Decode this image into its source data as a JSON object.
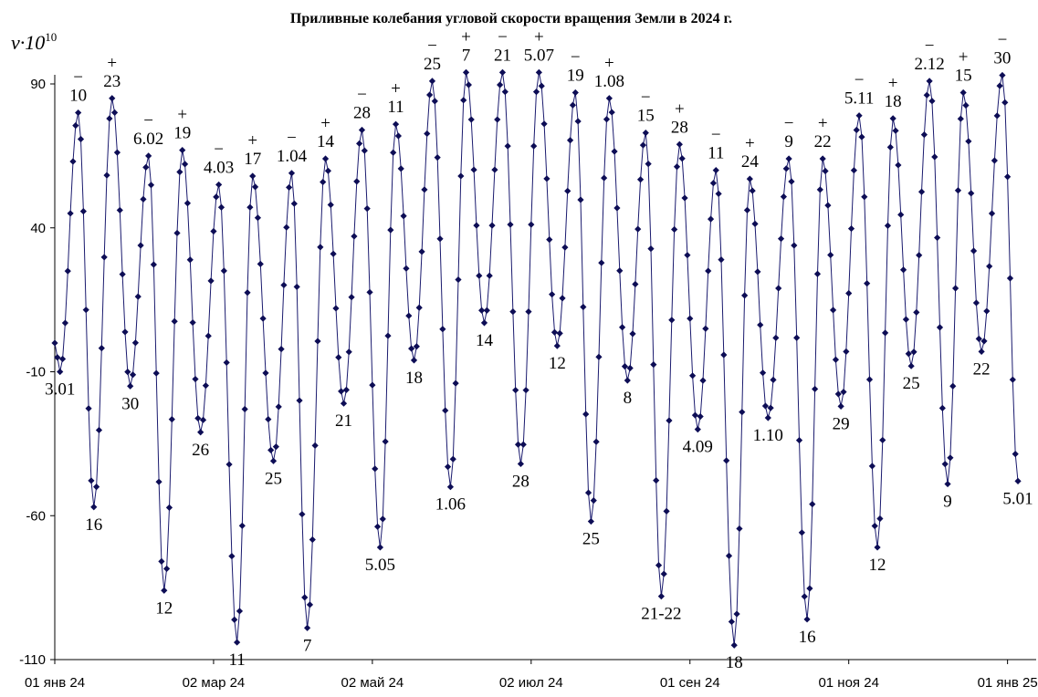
{
  "chart_data": {
    "type": "line",
    "title": "Приливные колебания угловой скорости вращения Земли в 2024 г.",
    "ylabel_base": "ν·10",
    "ylabel_exp": "10",
    "ylim": [
      -110,
      100
    ],
    "yticks": [
      90,
      40,
      -10,
      -60,
      -110
    ],
    "ytick_labels": [
      "90",
      "40",
      "-10",
      "-60",
      "-110"
    ],
    "xlim": [
      "2024-01-01",
      "2025-01-12"
    ],
    "xticks": [
      "2024-01-01",
      "2024-03-02",
      "2024-05-02",
      "2024-07-02",
      "2024-09-01",
      "2024-11-01",
      "2025-01-01"
    ],
    "xtick_labels": [
      "01 янв 24",
      "02 мар 24",
      "02 май 24",
      "02 июл 24",
      "01 сен 24",
      "01 ноя 24",
      "01 янв 25"
    ],
    "grid": false,
    "marker": "diamond",
    "line_color": "#1a1a6e",
    "marker_color": "#0d0d55",
    "extrema": [
      {
        "x": "2024-01-01",
        "y": 0
      },
      {
        "x": "2024-01-03",
        "y": -10,
        "label": "3.01"
      },
      {
        "x": "2024-01-10",
        "y": 80,
        "label": "10",
        "sign": "−"
      },
      {
        "x": "2024-01-16",
        "y": -57,
        "label": "16"
      },
      {
        "x": "2024-01-23",
        "y": 85,
        "label": "23",
        "sign": "+"
      },
      {
        "x": "2024-01-30",
        "y": -15,
        "label": "30"
      },
      {
        "x": "2024-02-06",
        "y": 65,
        "label": "6.02",
        "sign": "−"
      },
      {
        "x": "2024-02-12",
        "y": -86,
        "label": "12"
      },
      {
        "x": "2024-02-19",
        "y": 67,
        "label": "19",
        "sign": "+"
      },
      {
        "x": "2024-02-26",
        "y": -31,
        "label": "26"
      },
      {
        "x": "2024-03-04",
        "y": 55,
        "label": "4.03",
        "sign": "−"
      },
      {
        "x": "2024-03-11",
        "y": -104,
        "label": "11"
      },
      {
        "x": "2024-03-17",
        "y": 58,
        "label": "17",
        "sign": "+"
      },
      {
        "x": "2024-03-25",
        "y": -41,
        "label": "25"
      },
      {
        "x": "2024-04-01",
        "y": 59,
        "label": "1.04",
        "sign": "−"
      },
      {
        "x": "2024-04-07",
        "y": -99,
        "label": "7"
      },
      {
        "x": "2024-04-14",
        "y": 64,
        "label": "14",
        "sign": "+"
      },
      {
        "x": "2024-04-21",
        "y": -21,
        "label": "21"
      },
      {
        "x": "2024-04-28",
        "y": 74,
        "label": "28",
        "sign": "−"
      },
      {
        "x": "2024-05-05",
        "y": -71,
        "label": "5.05"
      },
      {
        "x": "2024-05-11",
        "y": 76,
        "label": "11",
        "sign": "+"
      },
      {
        "x": "2024-05-18",
        "y": -6,
        "label": "18"
      },
      {
        "x": "2024-05-25",
        "y": 91,
        "label": "25",
        "sign": "−"
      },
      {
        "x": "2024-06-01",
        "y": -50,
        "label": "1.06"
      },
      {
        "x": "2024-06-07",
        "y": 94,
        "label": "7",
        "sign": "+"
      },
      {
        "x": "2024-06-14",
        "y": 7,
        "label": "14"
      },
      {
        "x": "2024-06-21",
        "y": 94,
        "label": "21",
        "sign": "−"
      },
      {
        "x": "2024-06-28",
        "y": -42,
        "label": "28"
      },
      {
        "x": "2024-07-05",
        "y": 94,
        "label": "5.07",
        "sign": "+"
      },
      {
        "x": "2024-07-12",
        "y": -1,
        "label": "12"
      },
      {
        "x": "2024-07-19",
        "y": 87,
        "label": "19",
        "sign": "−"
      },
      {
        "x": "2024-07-25",
        "y": -62,
        "label": "25"
      },
      {
        "x": "2024-08-01",
        "y": 85,
        "label": "1.08",
        "sign": "+"
      },
      {
        "x": "2024-08-08",
        "y": -13,
        "label": "8"
      },
      {
        "x": "2024-08-15",
        "y": 73,
        "label": "15",
        "sign": "−"
      },
      {
        "x": "2024-08-21",
        "y": -88,
        "label": "21-22"
      },
      {
        "x": "2024-08-28",
        "y": 69,
        "label": "28",
        "sign": "+"
      },
      {
        "x": "2024-09-04",
        "y": -30,
        "label": "4.09"
      },
      {
        "x": "2024-09-11",
        "y": 60,
        "label": "11",
        "sign": "−"
      },
      {
        "x": "2024-09-18",
        "y": -105,
        "label": "18"
      },
      {
        "x": "2024-09-24",
        "y": 57,
        "label": "24",
        "sign": "+"
      },
      {
        "x": "2024-10-01",
        "y": -26,
        "label": "1.10"
      },
      {
        "x": "2024-10-09",
        "y": 64,
        "label": "9",
        "sign": "−"
      },
      {
        "x": "2024-10-16",
        "y": -96,
        "label": "16"
      },
      {
        "x": "2024-10-22",
        "y": 64,
        "label": "22",
        "sign": "+"
      },
      {
        "x": "2024-10-29",
        "y": -22,
        "label": "29"
      },
      {
        "x": "2024-11-05",
        "y": 79,
        "label": "5.11",
        "sign": "−"
      },
      {
        "x": "2024-11-12",
        "y": -71,
        "label": "12"
      },
      {
        "x": "2024-11-18",
        "y": 78,
        "label": "18",
        "sign": "+"
      },
      {
        "x": "2024-11-25",
        "y": -8,
        "label": "25"
      },
      {
        "x": "2024-12-02",
        "y": 91,
        "label": "2.12",
        "sign": "−"
      },
      {
        "x": "2024-12-09",
        "y": -49,
        "label": "9"
      },
      {
        "x": "2024-12-15",
        "y": 87,
        "label": "15",
        "sign": "+"
      },
      {
        "x": "2024-12-22",
        "y": -3,
        "label": "22"
      },
      {
        "x": "2024-12-30",
        "y": 93,
        "label": "30",
        "sign": "−"
      },
      {
        "x": "2025-01-05",
        "y": -48,
        "label": "5.01"
      }
    ]
  }
}
